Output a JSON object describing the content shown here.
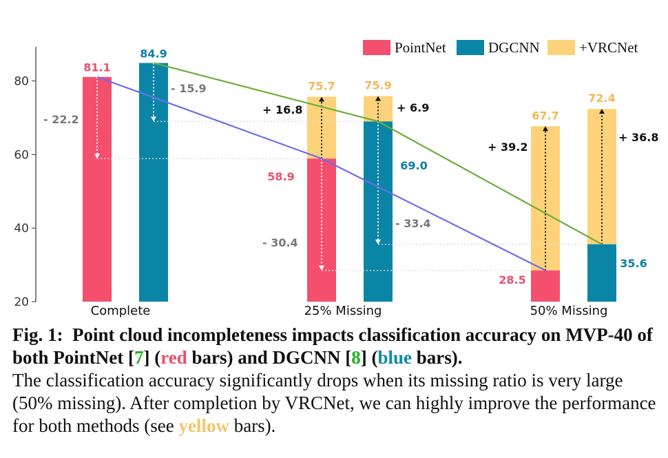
{
  "chart_data": {
    "type": "bar",
    "categories": [
      "Complete",
      "25% Missing",
      "50% Missing"
    ],
    "ylim": [
      20,
      90
    ],
    "yticks": [
      20,
      40,
      60,
      80
    ],
    "series": [
      {
        "name": "PointNet",
        "values": [
          81.1,
          58.9,
          28.5
        ],
        "color": "#f4506e"
      },
      {
        "name": "DGCNN",
        "values": [
          84.9,
          69.0,
          35.6
        ],
        "color": "#0a85a6"
      },
      {
        "name": "+VRCNet",
        "values": [
          null,
          75.7,
          72.4
        ],
        "color": "#fdd27a"
      }
    ],
    "vrcnet_totals": {
      "PointNet": [
        null,
        75.7,
        67.7
      ],
      "DGCNN": [
        null,
        75.9,
        72.4
      ]
    },
    "drop_labels": {
      "PointNet": [
        "- 22.2",
        "- 30.4"
      ],
      "DGCNN": [
        "- 15.9",
        "- 33.4"
      ]
    },
    "gain_labels": {
      "PointNet": [
        null,
        "+ 16.8",
        "+ 39.2"
      ],
      "DGCNN": [
        null,
        "+ 6.9",
        "+ 36.8"
      ]
    },
    "value_labels": {
      "PointNet": [
        "81.1",
        "58.9",
        "28.5"
      ],
      "DGCNN": [
        "84.9",
        "69.0",
        "35.6"
      ],
      "VRCNet_PointNet": [
        null,
        "75.7",
        "67.7"
      ],
      "VRCNet_DGCNN": [
        null,
        "75.9",
        "72.4"
      ]
    },
    "trend_colors": {
      "PointNet": "#6b6bef",
      "DGCNN": "#6aad3a"
    },
    "legend": [
      "PointNet",
      "DGCNN",
      "+VRCNet"
    ],
    "legend_position": "top-right"
  },
  "caption": {
    "fig_label": "Fig. 1:",
    "line1_a": "Point cloud incompleteness impacts classification accuracy on",
    "line2_a": "MVP-40 of both PointNet [",
    "ref7": "7",
    "line2_b": "] (",
    "red_word": "red",
    "line2_c": " bars) and DGCNN [",
    "ref8": "8",
    "line2_d": "] (",
    "blue_word": "blue",
    "line2_e": " bars).",
    "body_a": "The classification accuracy significantly drops when its missing ratio is very large (50% missing). After completion by VRCNet, we can highly improve the performance for both methods (see ",
    "yellow_word": "yellow",
    "body_b": " bars)."
  }
}
